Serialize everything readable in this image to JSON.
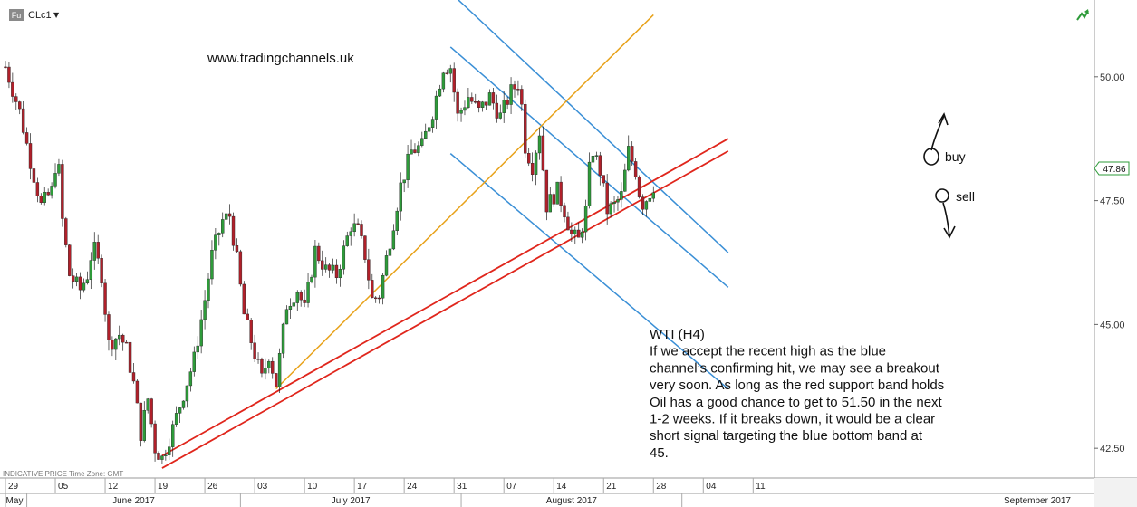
{
  "header": {
    "badge": "Fu",
    "symbol": "CLc1",
    "dropdown": "▼",
    "website": "www.tradingchannels.uk",
    "bottom_note": "INDICATIVE PRICE   Time Zone: GMT"
  },
  "annotation": {
    "lines": [
      "WTI (H4)",
      "If we accept the recent high as the blue",
      "channel’s confirming hit, we may see a breakout",
      "very soon. As long as the red support band holds",
      "Oil has a good chance to get to 51.50 in the next",
      "1-2 weeks. If it breaks down, it would be a clear",
      "short signal targeting the blue bottom band at",
      "45."
    ],
    "buy_label": "buy",
    "sell_label": "sell"
  },
  "colors": {
    "blue_channel": "#3a8fd6",
    "red_support": "#e0261c",
    "orange_trend": "#e8a21a",
    "bull_candle": "#2e9b3a",
    "bear_candle": "#b0202a",
    "price_tag_border": "#2e9b3a"
  },
  "chart_data": {
    "type": "candlestick",
    "instrument": "CLc1",
    "timeframe": "H4",
    "ylim": [
      41.9,
      51.55
    ],
    "y_ticks": [
      "42.50",
      "45.00",
      "47.50",
      "50.00"
    ],
    "y_tick_values": [
      42.5,
      45.0,
      47.5,
      50.0
    ],
    "last_price": "47.86",
    "date_ticks": [
      "29",
      "05",
      "12",
      "19",
      "26",
      "03",
      "10",
      "17",
      "24",
      "31",
      "07",
      "14",
      "21",
      "28",
      "04",
      "11"
    ],
    "month_labels": [
      "May",
      "June 2017",
      "July 2017",
      "August 2017",
      "September 2017"
    ],
    "close_path": [
      {
        "d": 0,
        "v": 50.2
      },
      {
        "d": 2,
        "v": 49.3
      },
      {
        "d": 3.5,
        "v": 48.3
      },
      {
        "d": 5,
        "v": 47.4
      },
      {
        "d": 6.5,
        "v": 47.7
      },
      {
        "d": 7.3,
        "v": 48.5
      },
      {
        "d": 8,
        "v": 47.1
      },
      {
        "d": 9,
        "v": 46.0
      },
      {
        "d": 10.5,
        "v": 45.7
      },
      {
        "d": 11.5,
        "v": 46.0
      },
      {
        "d": 12.3,
        "v": 46.6
      },
      {
        "d": 13.5,
        "v": 46.0
      },
      {
        "d": 14.5,
        "v": 44.6
      },
      {
        "d": 16,
        "v": 44.8
      },
      {
        "d": 17,
        "v": 44.5
      },
      {
        "d": 18,
        "v": 43.8
      },
      {
        "d": 19,
        "v": 42.8
      },
      {
        "d": 20,
        "v": 43.5
      },
      {
        "d": 21,
        "v": 42.5
      },
      {
        "d": 22,
        "v": 42.3
      },
      {
        "d": 23.5,
        "v": 42.9
      },
      {
        "d": 25,
        "v": 43.6
      },
      {
        "d": 26.5,
        "v": 44.3
      },
      {
        "d": 28,
        "v": 45.5
      },
      {
        "d": 29,
        "v": 46.4
      },
      {
        "d": 30.5,
        "v": 47.1
      },
      {
        "d": 31.5,
        "v": 47.2
      },
      {
        "d": 32.5,
        "v": 46.3
      },
      {
        "d": 33.5,
        "v": 45.2
      },
      {
        "d": 35,
        "v": 44.4
      },
      {
        "d": 36,
        "v": 43.9
      },
      {
        "d": 37,
        "v": 44.4
      },
      {
        "d": 38,
        "v": 43.8
      },
      {
        "d": 39.5,
        "v": 45.4
      },
      {
        "d": 41,
        "v": 45.7
      },
      {
        "d": 42,
        "v": 45.3
      },
      {
        "d": 43.5,
        "v": 46.5
      },
      {
        "d": 45,
        "v": 46.1
      },
      {
        "d": 46.5,
        "v": 46.0
      },
      {
        "d": 48.5,
        "v": 47.0
      },
      {
        "d": 49.5,
        "v": 46.9
      },
      {
        "d": 50.5,
        "v": 46.4
      },
      {
        "d": 51.5,
        "v": 45.5
      },
      {
        "d": 52.5,
        "v": 45.6
      },
      {
        "d": 54,
        "v": 46.7
      },
      {
        "d": 55.5,
        "v": 47.8
      },
      {
        "d": 57,
        "v": 48.5
      },
      {
        "d": 58.5,
        "v": 48.6
      },
      {
        "d": 60,
        "v": 49.3
      },
      {
        "d": 61.5,
        "v": 50.2
      },
      {
        "d": 62.5,
        "v": 50.2
      },
      {
        "d": 63.5,
        "v": 49.2
      },
      {
        "d": 65,
        "v": 49.6
      },
      {
        "d": 66.5,
        "v": 49.3
      },
      {
        "d": 68,
        "v": 49.6
      },
      {
        "d": 69.5,
        "v": 49.2
      },
      {
        "d": 71,
        "v": 49.7
      },
      {
        "d": 72.2,
        "v": 49.9
      },
      {
        "d": 73,
        "v": 48.6
      },
      {
        "d": 74,
        "v": 48.2
      },
      {
        "d": 75,
        "v": 48.9
      },
      {
        "d": 76,
        "v": 47.4
      },
      {
        "d": 77.5,
        "v": 47.7
      },
      {
        "d": 78.5,
        "v": 47.3
      },
      {
        "d": 79.5,
        "v": 46.8
      },
      {
        "d": 80.5,
        "v": 46.7
      },
      {
        "d": 81.5,
        "v": 47.3
      },
      {
        "d": 82.3,
        "v": 48.6
      },
      {
        "d": 83.5,
        "v": 48.1
      },
      {
        "d": 84.5,
        "v": 47.3
      },
      {
        "d": 85.5,
        "v": 47.4
      },
      {
        "d": 86.5,
        "v": 47.6
      },
      {
        "d": 87.5,
        "v": 48.5
      },
      {
        "d": 88.5,
        "v": 48.1
      },
      {
        "d": 89.3,
        "v": 47.4
      },
      {
        "d": 90.3,
        "v": 47.6
      },
      {
        "d": 91.2,
        "v": 47.86
      }
    ],
    "trendlines": [
      {
        "role": "blue_upper",
        "d1": 62.5,
        "v1": 51.7,
        "d2": 101.5,
        "v2": 46.45
      },
      {
        "role": "blue_middle",
        "d1": 62.5,
        "v1": 50.6,
        "d2": 101.5,
        "v2": 45.75
      },
      {
        "role": "blue_lower",
        "d1": 62.5,
        "v1": 48.45,
        "d2": 101.5,
        "v2": 43.7
      },
      {
        "role": "red_upper",
        "d1": 22,
        "v1": 42.35,
        "d2": 101.5,
        "v2": 48.75
      },
      {
        "role": "red_lower",
        "d1": 22,
        "v1": 42.1,
        "d2": 101.5,
        "v2": 48.5
      },
      {
        "role": "orange",
        "d1": 38,
        "v1": 43.7,
        "d2": 91,
        "v2": 51.25
      }
    ]
  }
}
